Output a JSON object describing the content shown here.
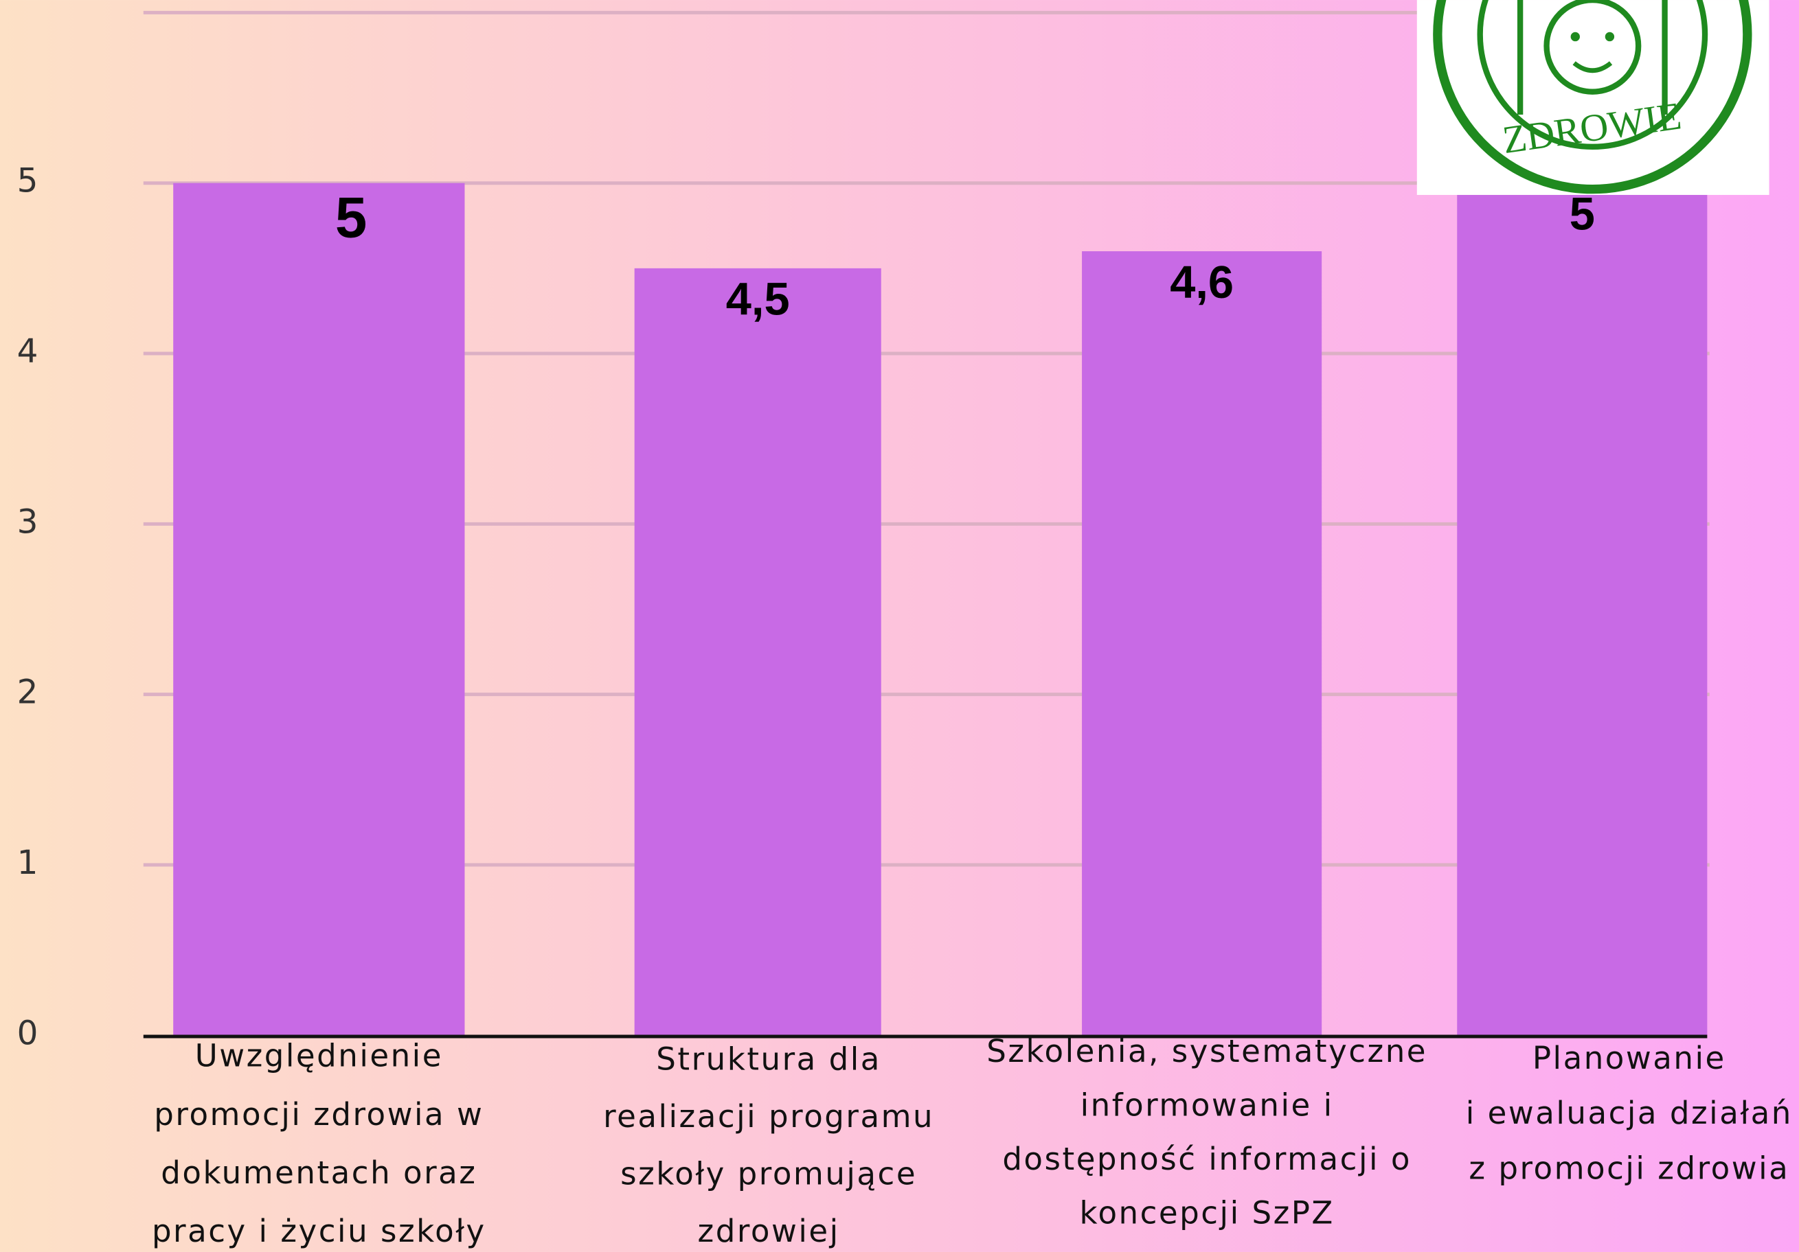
{
  "chart_data": {
    "type": "bar",
    "categories": [
      [
        "Uwzględnienie",
        "promocji zdrowia w",
        "dokumentach oraz",
        "pracy i życiu szkoły"
      ],
      [
        "Struktura dla",
        "realizacji programu",
        "szkoły promujące",
        "zdrowiej"
      ],
      [
        "Szkolenia, systematyczne",
        "informowanie i",
        "dostępność informacji o",
        "koncepcji SzPZ"
      ],
      [
        "Planowanie",
        "i ewaluacja działań",
        "z promocji zdrowia"
      ]
    ],
    "values": [
      5,
      4.5,
      4.6,
      5
    ],
    "value_labels": [
      "5",
      "4,5",
      "4,6",
      "5"
    ],
    "color": "#c86ae5",
    "ylim": [
      0,
      6
    ],
    "yticks": [
      0,
      1,
      2,
      3,
      4,
      5
    ],
    "grid": true,
    "logo_text": "ZDROWIE"
  }
}
